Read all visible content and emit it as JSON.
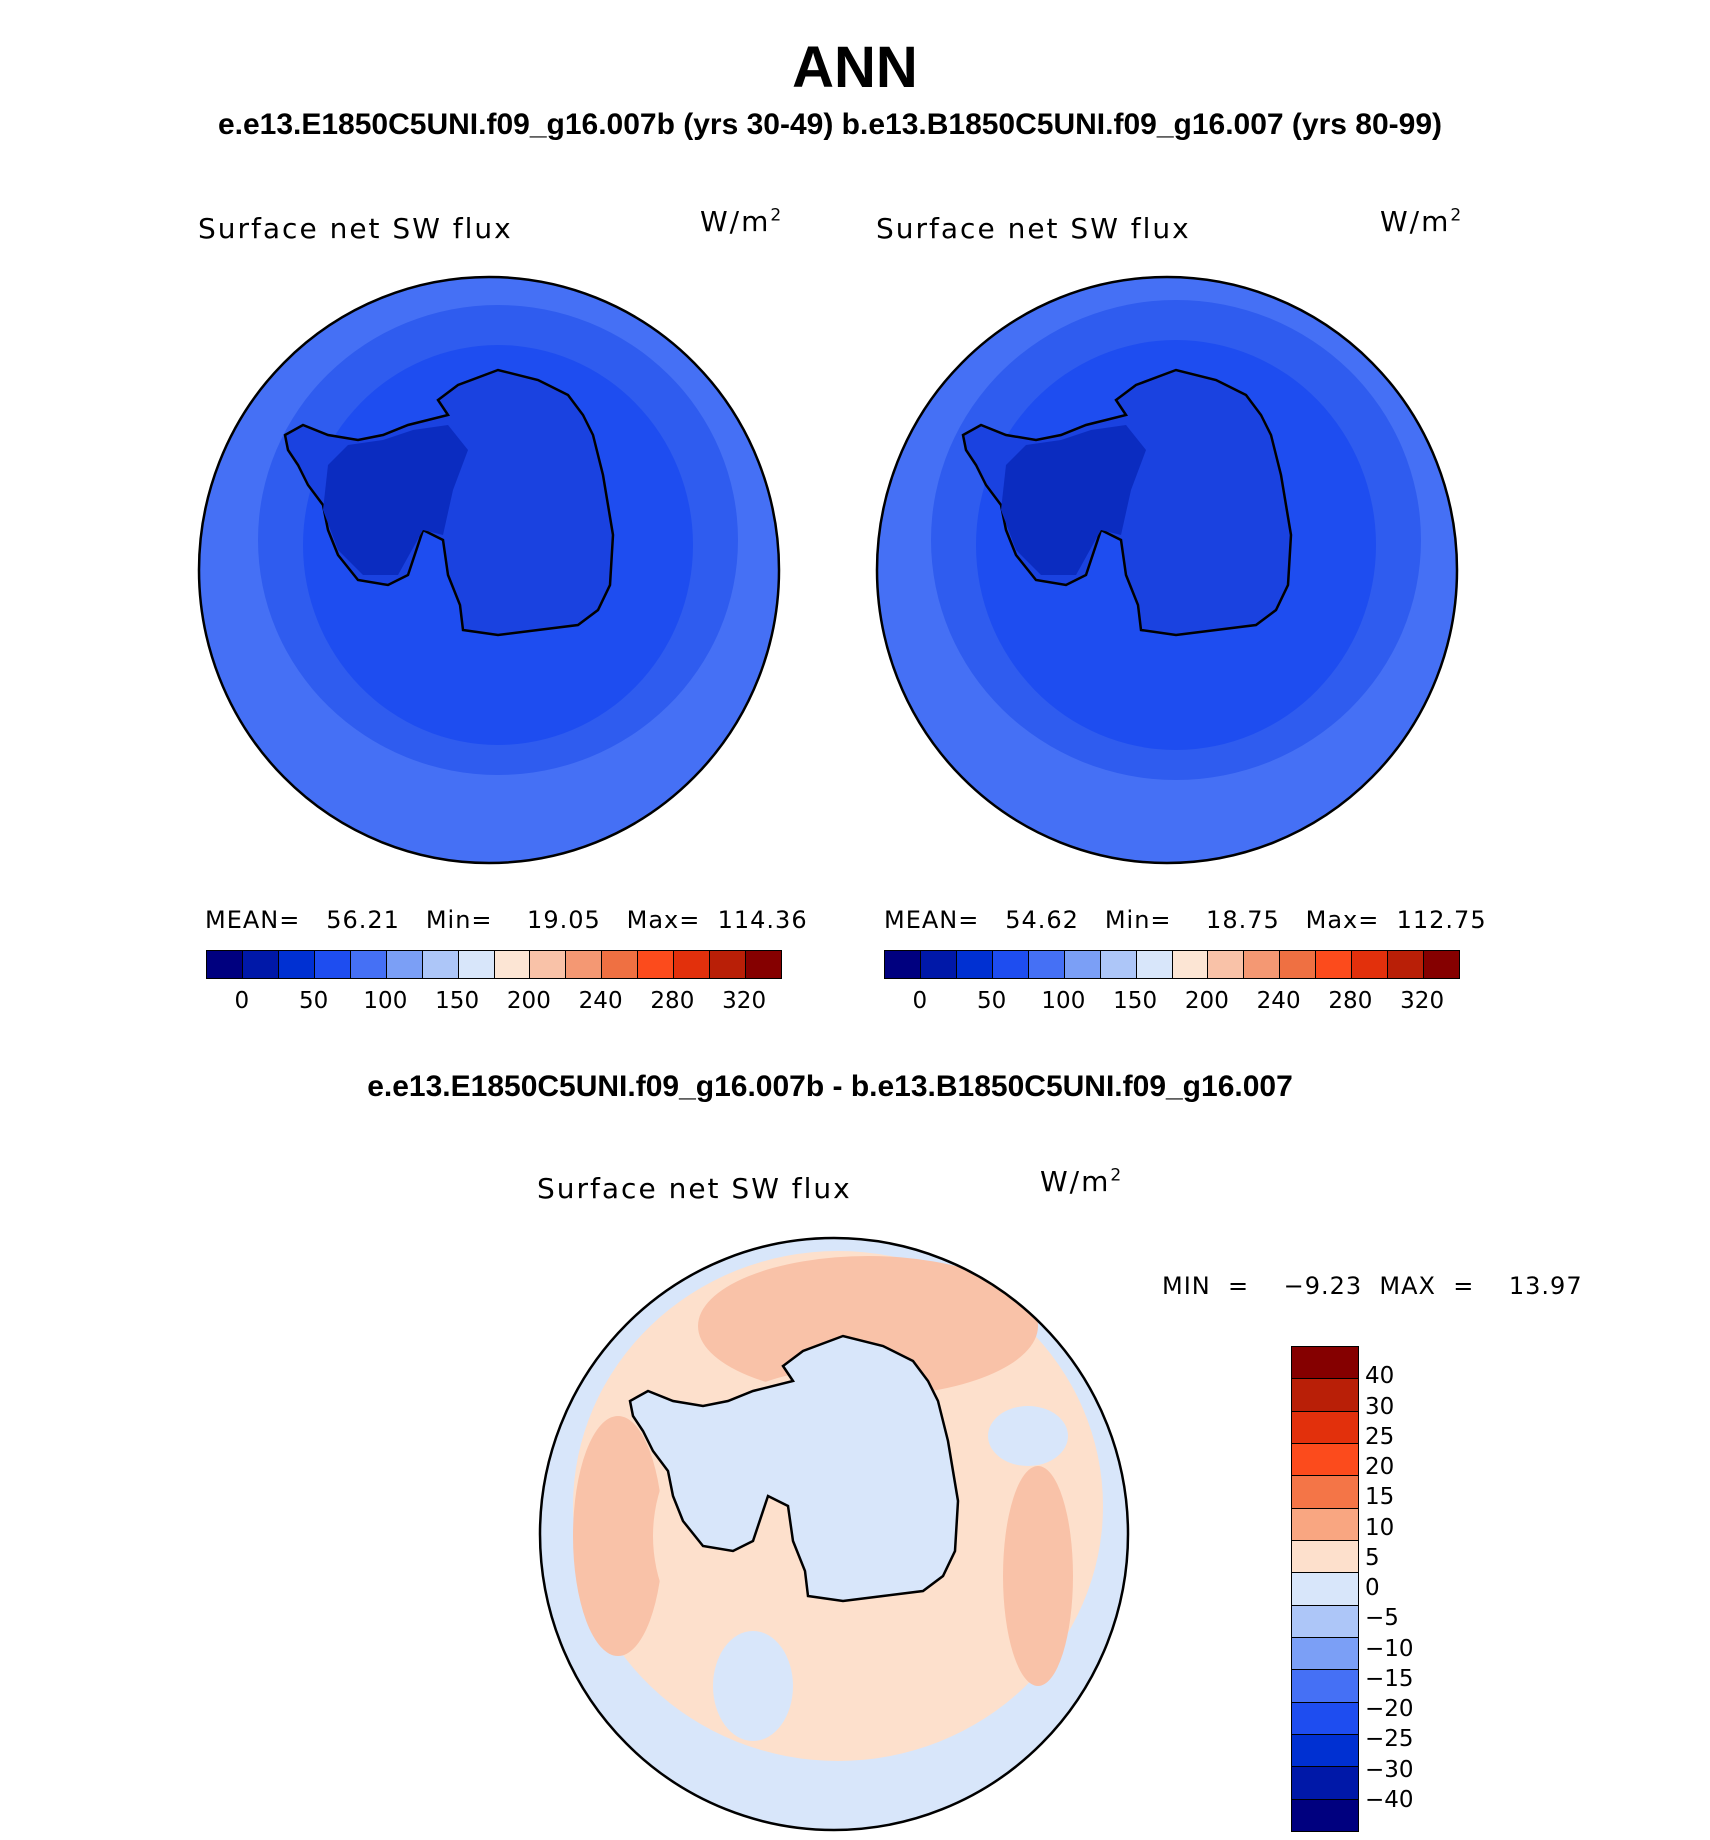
{
  "title": "ANN",
  "case_title": "e.e13.E1850C5UNI.f09_g16.007b (yrs 30-49)  b.e13.B1850C5UNI.f09_g16.007 (yrs 80-99)",
  "diff_title": "e.e13.E1850C5UNI.f09_g16.007b - b.e13.B1850C5UNI.f09_g16.007",
  "panels": [
    {
      "label": "Surface net SW flux",
      "unit_base": "W/m",
      "unit_exp": "2",
      "stats": "MEAN=   56.21   Min=    19.05   Max=  114.36"
    },
    {
      "label": "Surface net SW flux",
      "unit_base": "W/m",
      "unit_exp": "2",
      "stats": "MEAN=   54.62   Min=    18.75   Max=  112.75"
    },
    {
      "label": "Surface net SW flux",
      "unit_base": "W/m",
      "unit_exp": "2",
      "stats": "MIN  =    −9.23  MAX  =    13.97"
    }
  ],
  "colorbar_main": {
    "colors": [
      "#00007f",
      "#0018a8",
      "#0030d2",
      "#1e4df0",
      "#4570f5",
      "#7b9ff6",
      "#adc6f8",
      "#d8e6fa",
      "#fce5d4",
      "#f9c2a8",
      "#f49873",
      "#ef7042",
      "#fc4b1c",
      "#e2300c",
      "#b91f07",
      "#850000"
    ],
    "ticks": [
      "0",
      "50",
      "100",
      "150",
      "200",
      "240",
      "280",
      "320"
    ]
  },
  "colorbar_diff": {
    "colors": [
      "#850000",
      "#b91f07",
      "#e2300c",
      "#fc4b1c",
      "#f47547",
      "#f9a681",
      "#fde0cc",
      "#d8e6fa",
      "#adc6f8",
      "#7b9ff6",
      "#4570f5",
      "#1e4df0",
      "#0030d2",
      "#0018a8",
      "#00007f"
    ],
    "ticks": [
      "40",
      "30",
      "25",
      "20",
      "15",
      "10",
      "5",
      "0",
      "−5",
      "−10",
      "−15",
      "−20",
      "−25",
      "−30",
      "−40"
    ]
  }
}
